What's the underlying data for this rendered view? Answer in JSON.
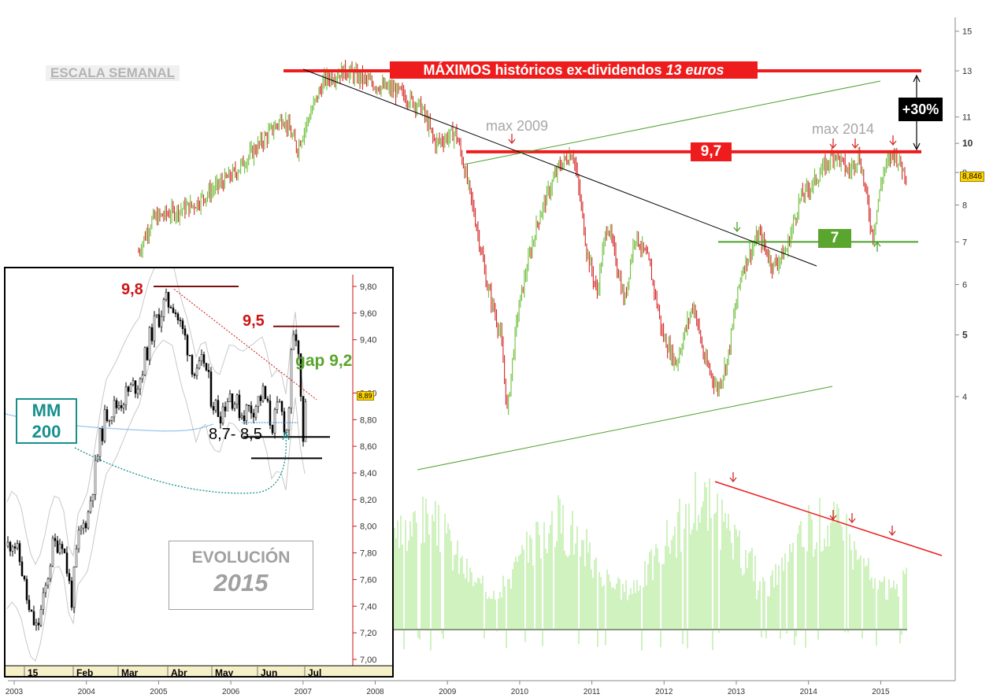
{
  "main_chart": {
    "x_ticks": [
      "2003",
      "2004",
      "2005",
      "2006",
      "2007",
      "2008",
      "2009",
      "2010",
      "2011",
      "2012",
      "2013",
      "2014",
      "2015"
    ],
    "y_ticks": [
      "15",
      "13",
      "11",
      "10",
      "9",
      "8",
      "7",
      "6",
      "5",
      "4"
    ],
    "scale": "log",
    "ylim": [
      3.4,
      15.5
    ],
    "last_price": "8,846",
    "scale_label": "ESCALA SEMANAL",
    "max_banner_text": "MÁXIMOS históricos ex-dividendos",
    "max_banner_value": "13 euros",
    "pct_label": "+30%",
    "level_high_label": "9,7",
    "level_low_label": "7",
    "max_2009_label": "max 2009",
    "max_2014_label": "max 2014",
    "levels": {
      "max_historic": 13,
      "resistance": 9.7,
      "support": 7
    },
    "colors": {
      "up": "#6fbf3c",
      "down": "#d62828",
      "red_line": "#ee1c1c",
      "green_line": "#4ca02a",
      "volume": "#9fe57f"
    }
  },
  "inset": {
    "x_labels": [
      "15",
      "Feb",
      "Mar",
      "Abr",
      "May",
      "Jun",
      "Jul"
    ],
    "y_ticks": [
      "9,80",
      "9,60",
      "9,40",
      "9,00",
      "8,80",
      "8,60",
      "8,40",
      "8,20",
      "8,00",
      "7,80",
      "7,60",
      "7,40",
      "7,20",
      "7,00"
    ],
    "ylim": [
      7.0,
      9.85
    ],
    "last_price": "8,89",
    "label_98": "9,8",
    "label_95": "9,5",
    "gap_label": "gap 9,2",
    "support_label": "8,7- 8,5",
    "mm_label_line1": "MM",
    "mm_label_line2": "200",
    "evo_title": "EVOLUCIÓN",
    "evo_year": "2015"
  }
}
